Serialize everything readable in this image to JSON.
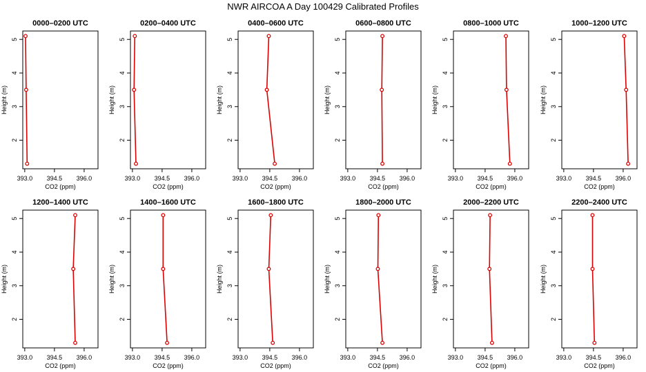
{
  "page": {
    "title": "NWR AIRCOA A  Day 100429  Calibrated Profiles"
  },
  "chart_data": {
    "type": "line",
    "grid": false,
    "xlabel": "CO2 (ppm)",
    "ylabel": "Height (m)",
    "xlim": [
      392.9,
      396.7
    ],
    "ylim": [
      1.15,
      5.25
    ],
    "xticks": [
      393.0,
      394.5,
      396.0
    ],
    "xtick_labels": [
      "393.0",
      "394.5",
      "396.0"
    ],
    "yticks": [
      2,
      3,
      4,
      5
    ],
    "ytick_labels": [
      "2",
      "3",
      "4",
      "5"
    ],
    "line_color": "#dd0000",
    "marker_color": "#dd0000",
    "panels": [
      {
        "title": "0000–0200 UTC",
        "x": [
          393.04,
          393.07,
          393.12
        ],
        "y": [
          5.1,
          3.5,
          1.3
        ]
      },
      {
        "title": "0200–0400 UTC",
        "x": [
          393.12,
          393.08,
          393.18
        ],
        "y": [
          5.1,
          3.5,
          1.3
        ]
      },
      {
        "title": "0400–0600 UTC",
        "x": [
          394.45,
          394.35,
          394.75
        ],
        "y": [
          5.1,
          3.5,
          1.3
        ]
      },
      {
        "title": "0600–0800 UTC",
        "x": [
          394.75,
          394.72,
          394.75
        ],
        "y": [
          5.1,
          3.5,
          1.3
        ]
      },
      {
        "title": "0800–1000 UTC",
        "x": [
          395.55,
          395.58,
          395.75
        ],
        "y": [
          5.1,
          3.5,
          1.3
        ]
      },
      {
        "title": "1000–1200 UTC",
        "x": [
          396.05,
          396.15,
          396.25
        ],
        "y": [
          5.1,
          3.5,
          1.3
        ]
      },
      {
        "title": "1200–1400 UTC",
        "x": [
          395.55,
          395.45,
          395.55
        ],
        "y": [
          5.1,
          3.5,
          1.3
        ]
      },
      {
        "title": "1400–1600 UTC",
        "x": [
          394.55,
          394.55,
          394.75
        ],
        "y": [
          5.1,
          3.5,
          1.3
        ]
      },
      {
        "title": "1600–1800 UTC",
        "x": [
          394.55,
          394.45,
          394.65
        ],
        "y": [
          5.1,
          3.5,
          1.3
        ]
      },
      {
        "title": "1800–2000 UTC",
        "x": [
          394.55,
          394.52,
          394.75
        ],
        "y": [
          5.1,
          3.5,
          1.3
        ]
      },
      {
        "title": "2000–2200 UTC",
        "x": [
          394.75,
          394.72,
          394.85
        ],
        "y": [
          5.1,
          3.5,
          1.3
        ]
      },
      {
        "title": "2200–2400 UTC",
        "x": [
          394.45,
          394.45,
          394.55
        ],
        "y": [
          5.1,
          3.5,
          1.3
        ]
      }
    ]
  }
}
